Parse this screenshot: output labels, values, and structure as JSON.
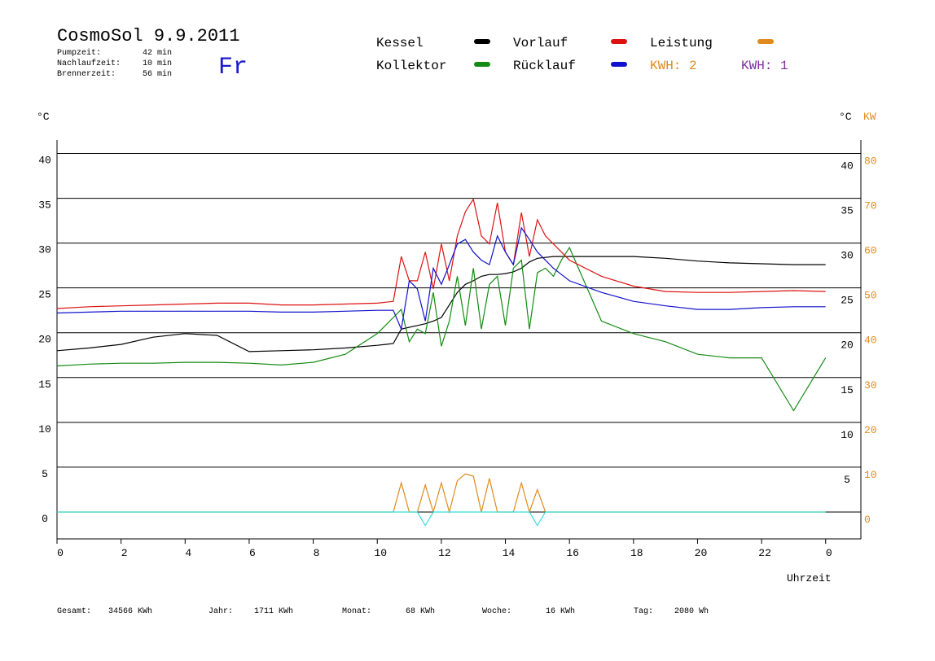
{
  "header": {
    "title": "CosmoSol 9.9.2011",
    "day": "Fr",
    "stats": [
      {
        "label": "Pumpzeit:",
        "value": "42 min"
      },
      {
        "label": "Nachlaufzeit:",
        "value": "10 min"
      },
      {
        "label": "Brennerzeit:",
        "value": "56 min"
      }
    ],
    "kwh_labels": [
      {
        "text": "KWH: 2",
        "color": "#e08a1e"
      },
      {
        "text": "KWH: 1",
        "color": "#8030a0"
      }
    ]
  },
  "chart_data": {
    "type": "line",
    "y_unit": "°C",
    "y2_units": [
      "°C",
      "KW"
    ],
    "x_label": "Uhrzeit",
    "x": [
      0,
      1,
      2,
      3,
      4,
      5,
      6,
      7,
      8,
      9,
      10,
      10.25,
      10.5,
      10.75,
      11,
      11.25,
      11.5,
      11.75,
      12,
      12.25,
      12.5,
      12.75,
      13,
      13.25,
      13.5,
      13.75,
      14,
      14.25,
      14.5,
      14.75,
      15,
      15.25,
      15.5,
      15.75,
      16,
      17,
      18,
      19,
      20,
      21,
      22,
      23,
      24
    ],
    "xlim": [
      0,
      25.1
    ],
    "xticks": [
      0,
      2,
      4,
      6,
      8,
      10,
      12,
      14,
      16,
      18,
      20,
      22,
      {
        "value": 24,
        "label": "0"
      }
    ],
    "ylim": [
      -3,
      41.5
    ],
    "yticks": [
      0,
      5,
      10,
      15,
      20,
      25,
      30,
      35,
      40
    ],
    "y_right_ticks": [
      5,
      10,
      15,
      20,
      25,
      30,
      35,
      40
    ],
    "y2lim": [
      -6,
      83
    ],
    "y2ticks": [
      0,
      10,
      20,
      30,
      40,
      50,
      60,
      70,
      80
    ],
    "grid": true,
    "series": [
      {
        "name": "Kessel",
        "color": "#000000",
        "values": [
          18.0,
          18.3,
          18.7,
          19.5,
          19.9,
          19.7,
          17.9,
          18.0,
          18.1,
          18.3,
          18.6,
          18.7,
          18.8,
          20.4,
          20.6,
          20.8,
          21.0,
          21.3,
          21.7,
          23.1,
          24.5,
          25.4,
          25.8,
          26.3,
          26.5,
          26.5,
          26.6,
          26.8,
          27.2,
          27.9,
          28.3,
          28.4,
          28.5,
          28.5,
          28.5,
          28.5,
          28.5,
          28.3,
          28.0,
          27.8,
          27.7,
          27.6,
          27.6
        ]
      },
      {
        "name": "Kollektor",
        "color": "#138a13",
        "values": [
          16.3,
          16.5,
          16.6,
          16.6,
          16.7,
          16.7,
          16.6,
          16.4,
          16.7,
          17.6,
          19.9,
          20.8,
          21.7,
          22.6,
          19.0,
          20.4,
          19.9,
          24.5,
          18.5,
          21.3,
          26.3,
          20.8,
          27.2,
          20.4,
          25.4,
          26.3,
          20.8,
          27.2,
          28.1,
          20.4,
          26.7,
          27.2,
          26.3,
          28.1,
          29.5,
          21.3,
          19.9,
          19.0,
          17.6,
          17.2,
          17.2,
          11.3,
          17.2
        ]
      },
      {
        "name": "Vorlauf",
        "color": "#dd1111",
        "values": [
          22.7,
          22.9,
          23.0,
          23.1,
          23.2,
          23.3,
          23.3,
          23.1,
          23.1,
          23.2,
          23.3,
          23.4,
          23.5,
          28.5,
          25.8,
          25.8,
          29.0,
          24.9,
          29.9,
          25.8,
          30.8,
          33.5,
          34.9,
          30.8,
          29.9,
          34.5,
          29.0,
          27.6,
          33.4,
          28.5,
          32.6,
          30.8,
          29.9,
          29.0,
          28.1,
          26.3,
          25.2,
          24.6,
          24.5,
          24.5,
          24.6,
          24.7,
          24.6
        ]
      },
      {
        "name": "Rücklauf",
        "color": "#1111cc",
        "values": [
          22.2,
          22.3,
          22.4,
          22.4,
          22.4,
          22.4,
          22.4,
          22.3,
          22.3,
          22.4,
          22.5,
          22.5,
          22.5,
          20.4,
          25.8,
          24.9,
          21.3,
          27.2,
          25.4,
          27.6,
          29.9,
          30.4,
          29.0,
          28.1,
          27.6,
          30.8,
          29.0,
          27.6,
          31.7,
          30.4,
          29.0,
          28.1,
          27.2,
          26.5,
          25.8,
          24.5,
          23.5,
          23.0,
          22.6,
          22.6,
          22.8,
          22.9,
          22.9
        ]
      },
      {
        "name": "Leistung",
        "color": "#e08a1e",
        "axis": "y2",
        "values": [
          0,
          0,
          0,
          0,
          0,
          0,
          0,
          0,
          0,
          0,
          0,
          0,
          0,
          6.5,
          0,
          0,
          6,
          0,
          6.5,
          0,
          7,
          8.5,
          8,
          0,
          7.5,
          0,
          0,
          0,
          6.5,
          0,
          5,
          0,
          0,
          0,
          0,
          0,
          0,
          0,
          0,
          0,
          0,
          0,
          0
        ]
      },
      {
        "color": "#33dddd",
        "values": [
          0,
          0,
          0,
          0,
          0,
          0,
          0,
          0,
          0,
          0,
          0,
          0,
          0,
          0,
          0,
          0,
          -1.5,
          0,
          0,
          0,
          0,
          0,
          0,
          0,
          0,
          0,
          0,
          0,
          0,
          0,
          -1.5,
          0,
          0,
          0,
          0,
          0,
          0,
          0,
          0,
          0,
          0,
          0,
          0
        ]
      }
    ]
  },
  "footer": {
    "items": [
      {
        "label": "Gesamt:",
        "value": "34566 KWh"
      },
      {
        "label": "Jahr:",
        "value": "1711 KWh"
      },
      {
        "label": "Monat:",
        "value": "68 KWh"
      },
      {
        "label": "Woche:",
        "value": "16 KWh"
      },
      {
        "label": "Tag:",
        "value": "2080 Wh"
      }
    ]
  }
}
